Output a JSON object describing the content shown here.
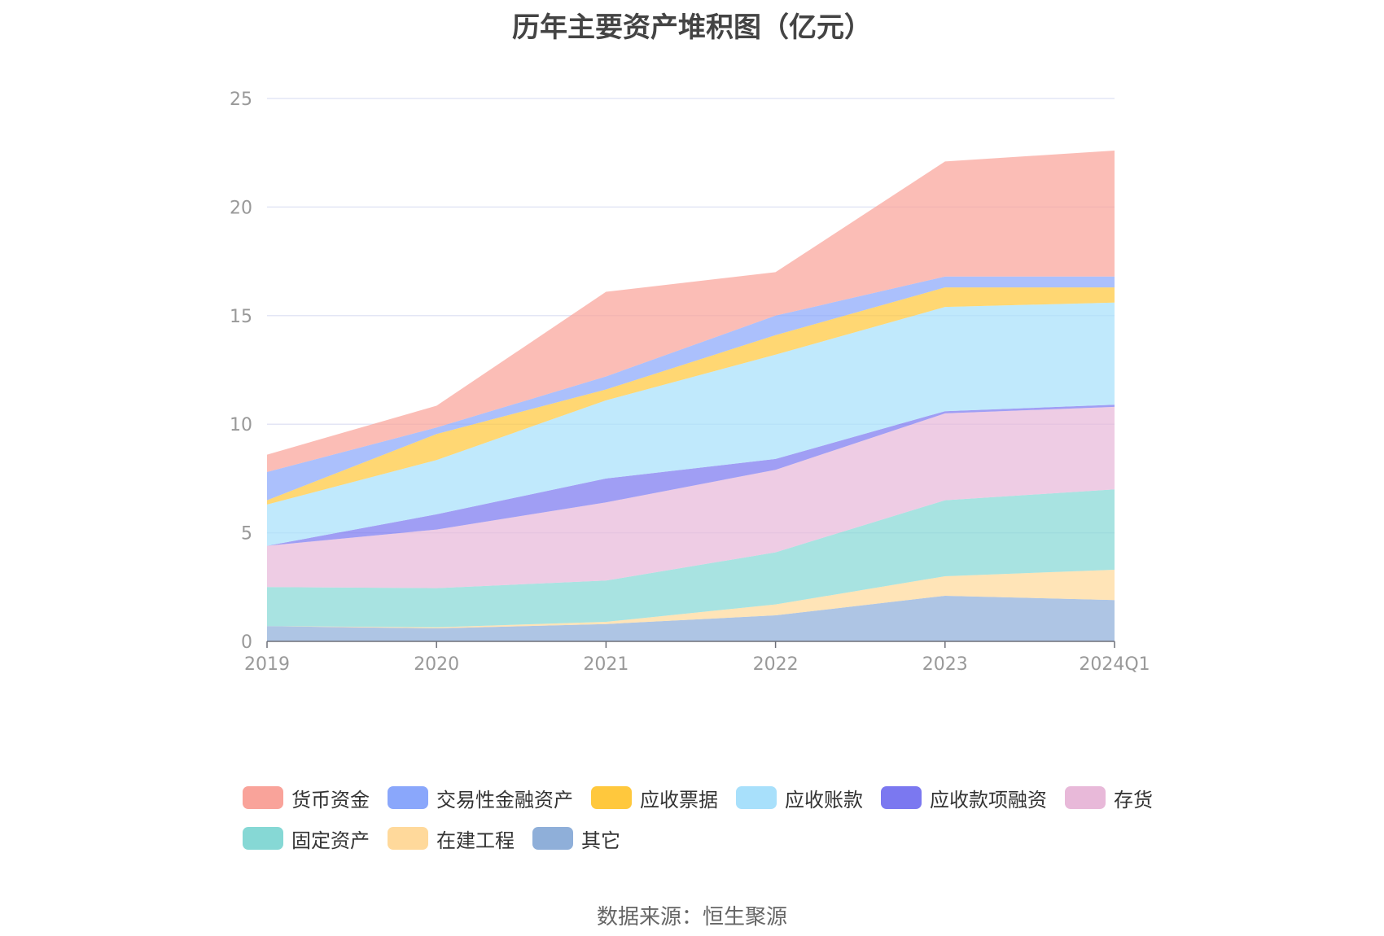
{
  "chart_data": {
    "type": "area",
    "stacked": true,
    "title": "历年主要资产堆积图（亿元）",
    "x": [
      "2019",
      "2020",
      "2021",
      "2022",
      "2023",
      "2024Q1"
    ],
    "ylim": [
      0,
      25
    ],
    "yticks": [
      "0",
      "5",
      "10",
      "15",
      "20",
      "25"
    ],
    "grid": true,
    "legend_position": "bottom",
    "series": [
      {
        "name": "其它",
        "color": "#8fafd9",
        "values": [
          0.7,
          0.6,
          0.8,
          1.2,
          2.1,
          1.9
        ]
      },
      {
        "name": "在建工程",
        "color": "#ffd99b",
        "values": [
          0.0,
          0.05,
          0.1,
          0.5,
          0.9,
          1.4
        ]
      },
      {
        "name": "固定资产",
        "color": "#86d8d5",
        "values": [
          1.8,
          1.8,
          1.9,
          2.4,
          3.5,
          3.7
        ]
      },
      {
        "name": "存货",
        "color": "#e8b9d9",
        "values": [
          1.9,
          2.7,
          3.6,
          3.8,
          4.0,
          3.8
        ]
      },
      {
        "name": "应收款项融资",
        "color": "#7b78f0",
        "values": [
          0.0,
          0.7,
          1.1,
          0.5,
          0.1,
          0.1
        ]
      },
      {
        "name": "应收账款",
        "color": "#a8e0fb",
        "values": [
          1.9,
          2.5,
          3.6,
          4.8,
          4.8,
          4.7
        ]
      },
      {
        "name": "应收票据",
        "color": "#ffc83d",
        "values": [
          0.2,
          1.2,
          0.5,
          0.9,
          0.9,
          0.7
        ]
      },
      {
        "name": "交易性金融资产",
        "color": "#8aa7fb",
        "values": [
          1.3,
          0.3,
          0.6,
          0.9,
          0.5,
          0.5
        ]
      },
      {
        "name": "货币资金",
        "color": "#f9a39a",
        "values": [
          0.8,
          1.0,
          3.9,
          2.0,
          5.3,
          5.8
        ]
      }
    ]
  },
  "legend_order": [
    "货币资金",
    "交易性金融资产",
    "应收票据",
    "应收账款",
    "应收款项融资",
    "存货",
    "固定资产",
    "在建工程",
    "其它"
  ],
  "source_text": "数据来源：恒生聚源"
}
